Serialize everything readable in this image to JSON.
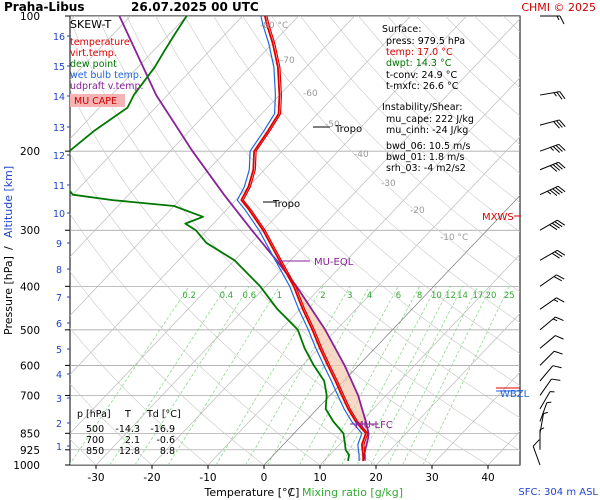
{
  "header": {
    "station": "Praha-Libus",
    "datetime": "26.07.2025 00 UTC",
    "credit": "CHMI © 2025"
  },
  "chart_data": {
    "type": "skew-t",
    "xlabel": "Temperature [°C]",
    "xlabel_sep": "/",
    "xlabel2": "Mixing ratio [g/kg]",
    "ylabel": "Pressure [hPa]",
    "ylabel_sep": "/",
    "ylabel2": "Altitude [km]",
    "xlim": [
      -35,
      45
    ],
    "pressure_ticks": [
      100,
      200,
      300,
      400,
      500,
      600,
      700,
      850,
      925,
      1000
    ],
    "temp_ticks": [
      -30,
      -20,
      -10,
      0,
      10,
      20,
      30,
      40
    ],
    "isotherm_labels": [
      "-80 °C",
      "-70",
      "-60",
      "-50",
      "-40",
      "-30",
      "-20",
      "-10 °C"
    ],
    "altitude_ticks": [
      "1",
      "2",
      "3",
      "4",
      "5",
      "6",
      "7",
      "8",
      "9",
      "10",
      "11",
      "12",
      "13",
      "14",
      "15",
      "16"
    ],
    "mixing_ratio_labels": [
      "0.2",
      "0.4",
      "0.6",
      "1",
      "2",
      "3",
      "4",
      "6",
      "8",
      "10",
      "12",
      "14",
      "17",
      "20",
      "25"
    ],
    "legend": {
      "title": "SKEW-T",
      "items": [
        {
          "label": "temperature",
          "color": "#dd0000"
        },
        {
          "label": "virt.temp.",
          "color": "#dd0000"
        },
        {
          "label": "dew point",
          "color": "#007700"
        },
        {
          "label": "wet bulb temp.",
          "color": "#2266dd"
        },
        {
          "label": "udpraft v.temp.",
          "color": "#882299"
        }
      ],
      "badge": "MU CAPE"
    },
    "surface": {
      "heading": "Surface:",
      "press": "press: 979.5 hPa",
      "temp": "temp: 17.0 °C",
      "dwpt": "dwpt: 14.3 °C",
      "tconv": "t-conv: 24.9 °C",
      "tmxfc": "t-mxfc: 26.6 °C"
    },
    "instability": {
      "heading": "Instability/Shear:",
      "mu_cape": "mu_cape: 222 J/kg",
      "mu_cinh": "mu_cinh: -24 J/kg",
      "bwd_06": "bwd_06: 10.5 m/s",
      "bwd_01": "bwd_01: 1.8 m/s",
      "srh_03": "srh_03: -4 m2/s2"
    },
    "levels_table": {
      "headers": [
        "p [hPa]",
        "T",
        "Td [°C]"
      ],
      "rows": [
        [
          "500",
          "-14.3",
          "-16.9"
        ],
        [
          "700",
          "2.1",
          "-0.6"
        ],
        [
          "850",
          "12.8",
          "8.8"
        ]
      ]
    },
    "annotations": {
      "tropo_upper": "Tropo",
      "tropo_lower": "Tropo",
      "mu_eql": "MU-EQL",
      "mu_lfc": "MU-LFC",
      "mxws": "MXWS",
      "wbzl": "WBZL",
      "sfc": "SFC: 304 m ASL"
    },
    "temperature": [
      {
        "p": 979,
        "t": 17.0
      },
      {
        "p": 950,
        "t": 16.0
      },
      {
        "p": 925,
        "t": 15.0
      },
      {
        "p": 900,
        "t": 14.0
      },
      {
        "p": 850,
        "t": 12.8
      },
      {
        "p": 800,
        "t": 9.0
      },
      {
        "p": 750,
        "t": 5.5
      },
      {
        "p": 700,
        "t": 2.1
      },
      {
        "p": 650,
        "t": -1.5
      },
      {
        "p": 600,
        "t": -5.5
      },
      {
        "p": 550,
        "t": -9.8
      },
      {
        "p": 500,
        "t": -14.3
      },
      {
        "p": 450,
        "t": -19.5
      },
      {
        "p": 400,
        "t": -25.0
      },
      {
        "p": 350,
        "t": -32.0
      },
      {
        "p": 300,
        "t": -40.0
      },
      {
        "p": 270,
        "t": -46.0
      },
      {
        "p": 257,
        "t": -49.0
      },
      {
        "p": 240,
        "t": -50.0
      },
      {
        "p": 220,
        "t": -52.0
      },
      {
        "p": 200,
        "t": -55.0
      },
      {
        "p": 180,
        "t": -56.0
      },
      {
        "p": 165,
        "t": -57.0
      },
      {
        "p": 150,
        "t": -60.0
      },
      {
        "p": 130,
        "t": -65.0
      },
      {
        "p": 115,
        "t": -70.0
      },
      {
        "p": 105,
        "t": -74.0
      },
      {
        "p": 100,
        "t": -76.0
      }
    ],
    "dewpoint": [
      {
        "p": 979,
        "t": 14.3
      },
      {
        "p": 950,
        "t": 13.5
      },
      {
        "p": 925,
        "t": 12.0
      },
      {
        "p": 900,
        "t": 11.0
      },
      {
        "p": 850,
        "t": 8.8
      },
      {
        "p": 800,
        "t": 5.0
      },
      {
        "p": 750,
        "t": 1.5
      },
      {
        "p": 700,
        "t": -0.6
      },
      {
        "p": 650,
        "t": -3.5
      },
      {
        "p": 600,
        "t": -8.0
      },
      {
        "p": 550,
        "t": -12.5
      },
      {
        "p": 500,
        "t": -16.9
      },
      {
        "p": 450,
        "t": -24.0
      },
      {
        "p": 400,
        "t": -31.0
      },
      {
        "p": 350,
        "t": -40.0
      },
      {
        "p": 320,
        "t": -48.0
      },
      {
        "p": 300,
        "t": -52.0
      },
      {
        "p": 290,
        "t": -55.0
      },
      {
        "p": 280,
        "t": -53.0
      },
      {
        "p": 265,
        "t": -60.0
      },
      {
        "p": 257,
        "t": -72.0
      },
      {
        "p": 250,
        "t": -80.0
      },
      {
        "p": 230,
        "t": -85.0
      },
      {
        "p": 200,
        "t": -88.0
      },
      {
        "p": 180,
        "t": -87.0
      },
      {
        "p": 160,
        "t": -85.0
      },
      {
        "p": 150,
        "t": -86.0
      },
      {
        "p": 130,
        "t": -87.0
      },
      {
        "p": 120,
        "t": -88.0
      },
      {
        "p": 110,
        "t": -89.0
      },
      {
        "p": 100,
        "t": -90.0
      }
    ],
    "parcel": [
      {
        "p": 979,
        "t": 17.0
      },
      {
        "p": 925,
        "t": 15.5
      },
      {
        "p": 870,
        "t": 14.0
      },
      {
        "p": 850,
        "t": 13.3
      },
      {
        "p": 800,
        "t": 10.8
      },
      {
        "p": 700,
        "t": 5.0
      },
      {
        "p": 600,
        "t": -2.5
      },
      {
        "p": 500,
        "t": -12.0
      },
      {
        "p": 400,
        "t": -24.5
      },
      {
        "p": 350,
        "t": -32.5
      },
      {
        "p": 300,
        "t": -42.0
      },
      {
        "p": 250,
        "t": -53.0
      },
      {
        "p": 200,
        "t": -66.0
      },
      {
        "p": 150,
        "t": -82.0
      },
      {
        "p": 100,
        "t": -102.0
      }
    ],
    "wind_levels_hpa": [
      100,
      150,
      175,
      200,
      220,
      250,
      300,
      350,
      400,
      450,
      500,
      550,
      600,
      650,
      700,
      750,
      800,
      850,
      925,
      1000
    ]
  }
}
